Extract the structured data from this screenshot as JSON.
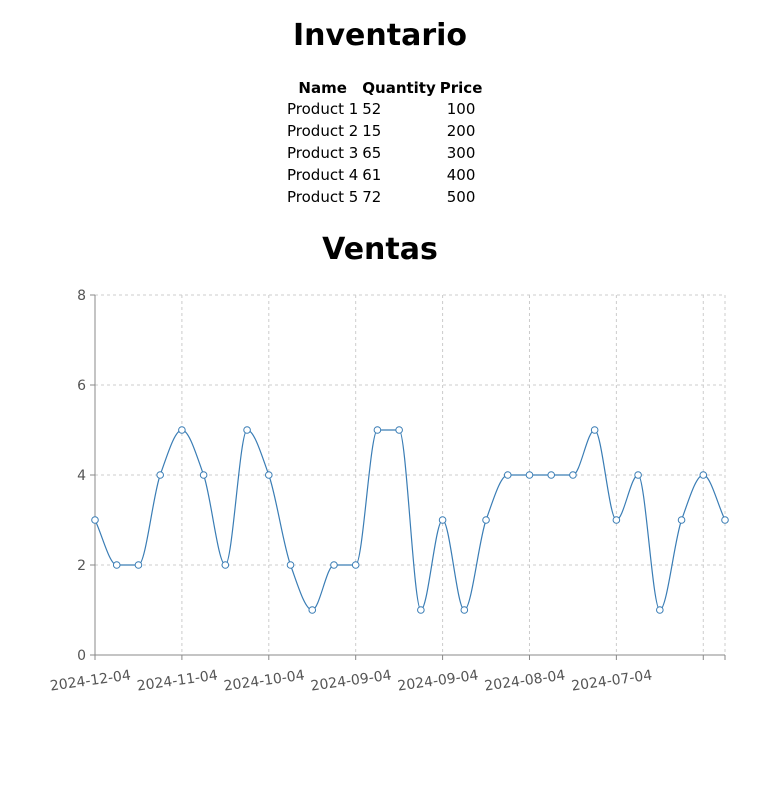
{
  "inventory": {
    "title": "Inventario",
    "headers": [
      "Name",
      "Quantity",
      "Price"
    ],
    "rows": [
      [
        "Product 1",
        "52",
        "100"
      ],
      [
        "Product 2",
        "15",
        "200"
      ],
      [
        "Product 3",
        "65",
        "300"
      ],
      [
        "Product 4",
        "61",
        "400"
      ],
      [
        "Product 5",
        "72",
        "500"
      ]
    ]
  },
  "sales": {
    "title": "Ventas"
  },
  "colors": {
    "line": "#3a7db5",
    "grid": "#cccccc",
    "axis": "#888888"
  },
  "chart_data": {
    "type": "line",
    "title": "Ventas",
    "xlabel": "",
    "ylabel": "",
    "x_order": "descending dates, left to right",
    "ylim": [
      0,
      8
    ],
    "yticks": [
      0,
      2,
      4,
      6,
      8
    ],
    "xtick_labels": [
      "2024-12-04",
      "2024-11-04",
      "2024-10-04",
      "2024-09-04",
      "2024-09-04",
      "2024-08-04",
      "2024-07-04"
    ],
    "grid": true,
    "curve": "smooth",
    "values": [
      3,
      2,
      2,
      4,
      5,
      4,
      2,
      5,
      4,
      2,
      1,
      2,
      2,
      5,
      5,
      1,
      3,
      1,
      3,
      4,
      4,
      4,
      4,
      5,
      3,
      4,
      1,
      3,
      4,
      3
    ]
  }
}
